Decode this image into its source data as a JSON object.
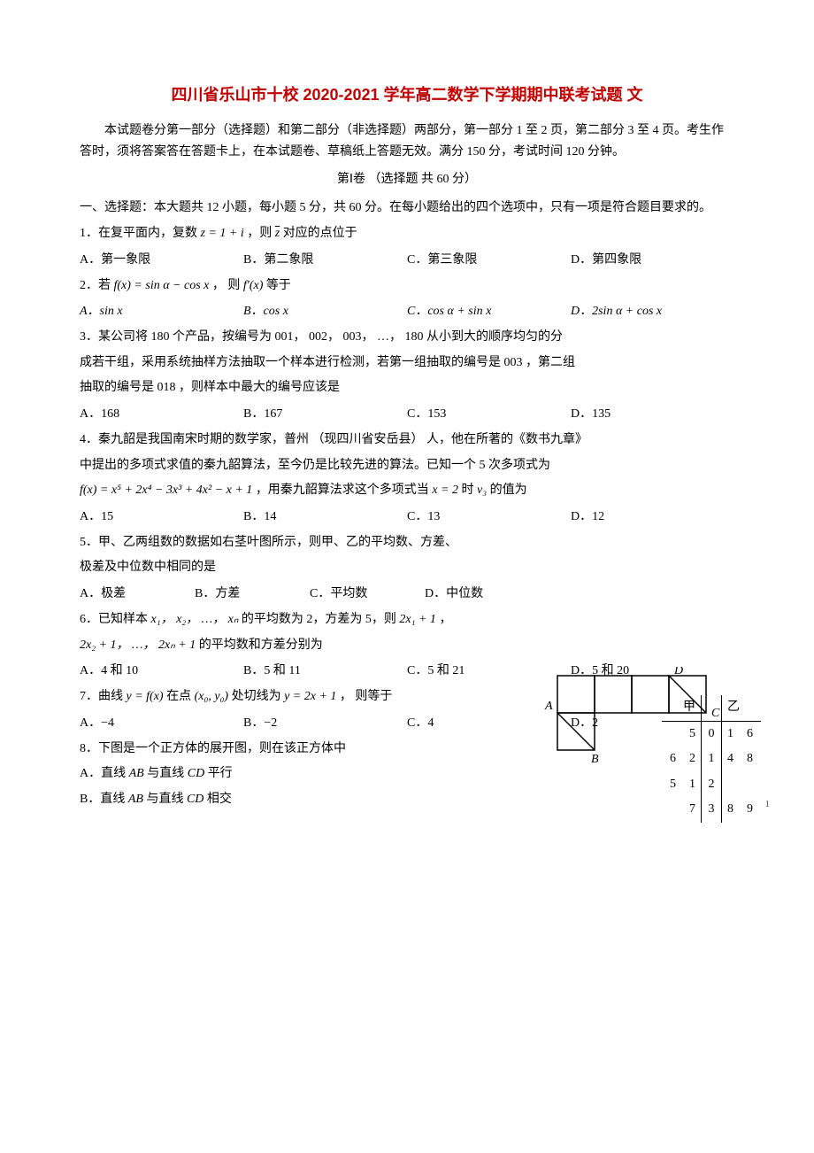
{
  "colors": {
    "title": "#c00000",
    "text": "#000000",
    "page_bg": "#ffffff",
    "line": "#000000"
  },
  "title": "四川省乐山市十校 2020-2021 学年高二数学下学期期中联考试题 文",
  "intro_p1": "本试题卷分第一部分（选择题）和第二部分（非选择题）两部分，第一部分 1 至 2 页，第二部分 3 至 4 页。考生作答时，须将答案答在答题卡上，在本试题卷、草稿纸上答题无效。满分 150 分，考试时间 120 分钟。",
  "section1_header": "第Ⅰ卷 （选择题  共 60 分）",
  "section1_instructions": "一、选择题：本大题共 12 小题，每小题 5 分，共 60 分。在每小题给出的四个选项中，只有一项是符合题目要求的。",
  "q1": {
    "pre": "1．在复平面内，复数",
    "math": "z = 1 + i",
    "mid": "，则 ",
    "bar": "z",
    "post": " 对应的点位于",
    "A": "A．第一象限",
    "B": "B．第二象限",
    "C": "C．第三象限",
    "D": "D．第四象限"
  },
  "q2": {
    "pre": "2．若",
    "f": "f(x) = sin α − cos x",
    "mid": "， 则",
    "fp": "f′(x)",
    "post": "等于",
    "A": "A．sin x",
    "B": "B．cos x",
    "C": "C．cos α + sin x",
    "D": "D．2sin α + cos x"
  },
  "q3": {
    "line1_pre": "3．某公司将",
    "n": "180",
    "line1_mid1": "个产品，按编号为",
    "seq": "001， 002， 003， …， 180",
    "line1_post": "从小到大的顺序均匀的分",
    "line2_a": "成若干组，采用系统抽样方法抽取一个样本进行检测，若第一组抽取的编号是",
    "g1": "003",
    "line2_b": "，第二组",
    "line3_a": "抽取的编号是",
    "g2": "018",
    "line3_b": "，则样本中最大的编号应该是",
    "A": "A．168",
    "B": "B．167",
    "C": "C．153",
    "D": "D．135"
  },
  "q4": {
    "line1_a": "4．秦九韶是我国南宋时期的数学家，普州",
    "paren": "（现四川省安岳县）",
    "line1_b": "人，他在所著的《数书九章》",
    "line2": "中提出的多项式求值的秦九韶算法，至今仍是比较先进的算法。已知一个 5 次多项式为",
    "poly": "f(x) = x⁵ + 2x⁴ − 3x³ + 4x² − x + 1",
    "line3_a": "，用秦九韶算法求这个多项式当",
    "xval": "x = 2",
    "line3_b": "  时",
    "v3": "v₃",
    "line3_c": "的值为",
    "A": "A．15",
    "B": "B．14",
    "C": "C．13",
    "D": "D．12"
  },
  "q5": {
    "line1": "5．甲、乙两组数的数据如右茎叶图所示，则甲、乙的平均数、方差、",
    "line2": "极差及中位数中相同的是",
    "A": "A．极差",
    "B": "B．方差",
    "C": "C．平均数",
    "D": "D．中位数"
  },
  "stemleaf": {
    "headers": [
      "甲",
      "",
      "乙"
    ],
    "rows": [
      {
        "left": [
          "5"
        ],
        "stem": "0",
        "right": [
          "1",
          "6"
        ]
      },
      {
        "left": [
          "6",
          "2"
        ],
        "stem": "1",
        "right": [
          "4",
          "8"
        ]
      },
      {
        "left": [
          "5",
          "1"
        ],
        "stem": "2",
        "right": []
      },
      {
        "left": [
          "7"
        ],
        "stem": "3",
        "right": [
          "8",
          "9"
        ]
      }
    ],
    "font_size": 14,
    "border_color": "#000000"
  },
  "q6": {
    "pre": "6．已知样本",
    "xs": "x₁， x₂， …， xₙ",
    "mid": "的平均数为 2，方差为 5，则",
    "tx1": "2x₁ + 1",
    "comma": "，",
    "line2a": "2x₂ + 1， …， 2xₙ + 1",
    "line2b": "的平均数和方差分别为",
    "A": "A．4 和 10",
    "B": "B．5 和 11",
    "C": "C．5 和 21",
    "D": "D．5 和 20"
  },
  "q7": {
    "pre": "7．曲线",
    "y": "y = f(x)",
    "mid1": "在点",
    "pt": "(x₀, y₀)",
    "mid2": "处切线为",
    "tan": "y = 2x + 1",
    "post": "， 则等于",
    "A": "A．−4",
    "B": "B．−2",
    "C": "C．4",
    "D": "D．2"
  },
  "q8": {
    "line": "8．下图是一个正方体的展开图，则在该正方体中",
    "A_pre": "A．直线",
    "AB": "AB",
    "A_mid": "与直线",
    "CD": "CD",
    "A_post": "平行",
    "B_pre": "B．直线",
    "B_mid": "与直线",
    "B_post": "相交"
  },
  "cube_net": {
    "square": 42,
    "stroke": "#000000",
    "stroke_width": 1.5,
    "labels": {
      "A": "A",
      "B": "B",
      "C": "C",
      "D": "D"
    }
  },
  "page_number": "1"
}
